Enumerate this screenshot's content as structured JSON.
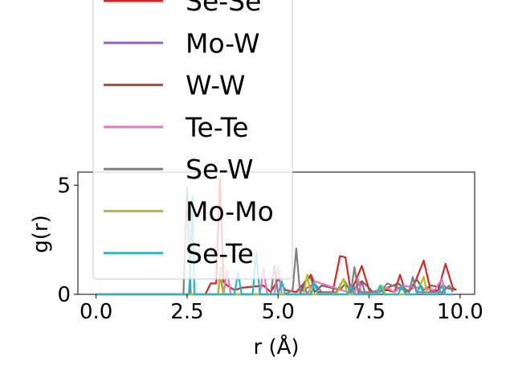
{
  "chart_data": {
    "type": "line",
    "title": "",
    "xlabel": "r (Å)",
    "ylabel": "g(r)",
    "xlim": [
      -0.5,
      10.4
    ],
    "ylim": [
      0,
      5.6
    ],
    "xticks": [
      0.0,
      2.5,
      5.0,
      7.5,
      10.0
    ],
    "xtick_labels": [
      "0.0",
      "2.5",
      "5.0",
      "7.5",
      "10.0"
    ],
    "yticks": [
      0,
      5
    ],
    "ytick_labels": [
      "0",
      "5"
    ],
    "legend_position": "top-left (overflowing above plot)",
    "series": [
      {
        "name": "Se-Se",
        "color": "#d62728",
        "x": [
          0,
          3.0,
          3.15,
          3.3,
          3.4,
          3.5,
          3.6,
          3.8,
          4.0,
          4.6,
          4.8,
          5.0,
          5.2,
          5.5,
          5.7,
          5.9,
          6.1,
          6.5,
          6.7,
          6.85,
          7.0,
          7.3,
          7.5,
          7.6,
          8.0,
          8.2,
          8.35,
          8.5,
          8.7,
          9.0,
          9.2,
          9.4,
          9.6,
          9.8,
          9.9
        ],
        "y": [
          0,
          0,
          0.5,
          0.5,
          5.3,
          0.6,
          0.4,
          0.2,
          0.3,
          0.4,
          0.1,
          0.7,
          0.2,
          0.1,
          0.5,
          0.9,
          0.1,
          0.1,
          1.75,
          1.7,
          0.1,
          1.3,
          0.2,
          0.1,
          0.2,
          0.1,
          0.9,
          0.1,
          0.3,
          1.55,
          0.1,
          0.2,
          1.4,
          0.3,
          0.2
        ]
      },
      {
        "name": "Mo-W",
        "color": "#9467bd",
        "x": [
          0,
          3.35,
          3.4,
          3.5,
          5.6,
          5.7,
          5.8,
          7.2,
          7.3,
          7.4,
          9.5,
          9.6
        ],
        "y": [
          0,
          0,
          0.9,
          0,
          0,
          0.5,
          0,
          0,
          0.6,
          0,
          0,
          0.4
        ]
      },
      {
        "name": "W-W",
        "color": "#8c564b",
        "x": [
          0,
          3.35,
          3.42,
          3.5,
          5.6,
          5.75,
          5.9,
          6.0,
          6.2,
          6.7,
          6.85,
          7.0,
          7.3,
          7.5,
          7.6,
          8.0,
          8.3,
          8.6,
          8.8,
          9.0,
          9.2,
          9.6,
          9.9
        ],
        "y": [
          0,
          0,
          1.2,
          0,
          0,
          0.6,
          0.8,
          0.1,
          0.4,
          0.2,
          0.5,
          0.1,
          0.6,
          0.3,
          0.1,
          0.3,
          0.5,
          0.1,
          0.7,
          0.2,
          0.4,
          0.3,
          0.2
        ]
      },
      {
        "name": "Te-Te",
        "color": "#e377c2",
        "x": [
          0,
          3.5,
          3.6,
          3.7,
          4.5,
          4.6,
          4.7,
          4.9,
          5.0,
          5.1,
          5.8,
          6.0,
          7.1,
          7.2,
          7.3,
          8.0,
          8.2,
          8.4,
          9.3,
          9.5,
          9.6
        ],
        "y": [
          0,
          0,
          1.1,
          0,
          0,
          1.2,
          0,
          0,
          1.3,
          0,
          0,
          0.6,
          0,
          0.7,
          0,
          0.3,
          0.1,
          0.4,
          0.2,
          0.7,
          0.1
        ]
      },
      {
        "name": "Se-W",
        "color": "#7f7f7f",
        "x": [
          0,
          2.4,
          2.5,
          2.6,
          4.8,
          4.9,
          5.0,
          5.2,
          5.4,
          5.5,
          5.6,
          6.0,
          6.2,
          6.6,
          6.8,
          7.0,
          7.1,
          7.2,
          7.8,
          8.0,
          8.6,
          8.7,
          8.8,
          9.5,
          9.7,
          9.8
        ],
        "y": [
          0,
          0,
          4.9,
          0,
          0,
          1.3,
          0,
          0,
          0.2,
          2.1,
          0.1,
          0.5,
          0.1,
          0.1,
          0.7,
          0.1,
          1.25,
          0.1,
          0.1,
          0.5,
          0.1,
          0.8,
          0.1,
          0.1,
          0.4,
          0.1
        ]
      },
      {
        "name": "Mo-Mo",
        "color": "#bcbd22",
        "x": [
          0,
          3.35,
          3.42,
          3.5,
          5.7,
          5.8,
          5.9,
          6.6,
          6.8,
          6.9,
          7.7,
          7.85,
          7.95,
          8.8,
          9.0,
          9.1
        ],
        "y": [
          0,
          0,
          1.1,
          0,
          0,
          0.9,
          0,
          0,
          0.7,
          0,
          0,
          0.4,
          0,
          0,
          0.8,
          0
        ]
      },
      {
        "name": "Se-Te",
        "color": "#17becf",
        "x": [
          0,
          2.55,
          2.6,
          2.65,
          2.7,
          3.8,
          3.9,
          4.0,
          4.3,
          4.4,
          4.5,
          5.0,
          5.1,
          5.2,
          5.9,
          6.0,
          6.1,
          6.9,
          7.0,
          7.1,
          7.7,
          7.8,
          7.9,
          8.3,
          8.4,
          8.5,
          8.8,
          8.9,
          9.0,
          9.4,
          9.5,
          9.6,
          9.8
        ],
        "y": [
          0,
          0,
          1.5,
          4.5,
          0,
          0,
          1.0,
          0,
          0,
          1.9,
          0,
          0,
          0.6,
          0,
          0,
          0.5,
          0,
          0,
          0.4,
          0,
          0,
          0.4,
          0,
          0,
          0.4,
          0,
          0,
          0.4,
          0,
          0,
          0.4,
          0,
          0
        ]
      }
    ]
  }
}
